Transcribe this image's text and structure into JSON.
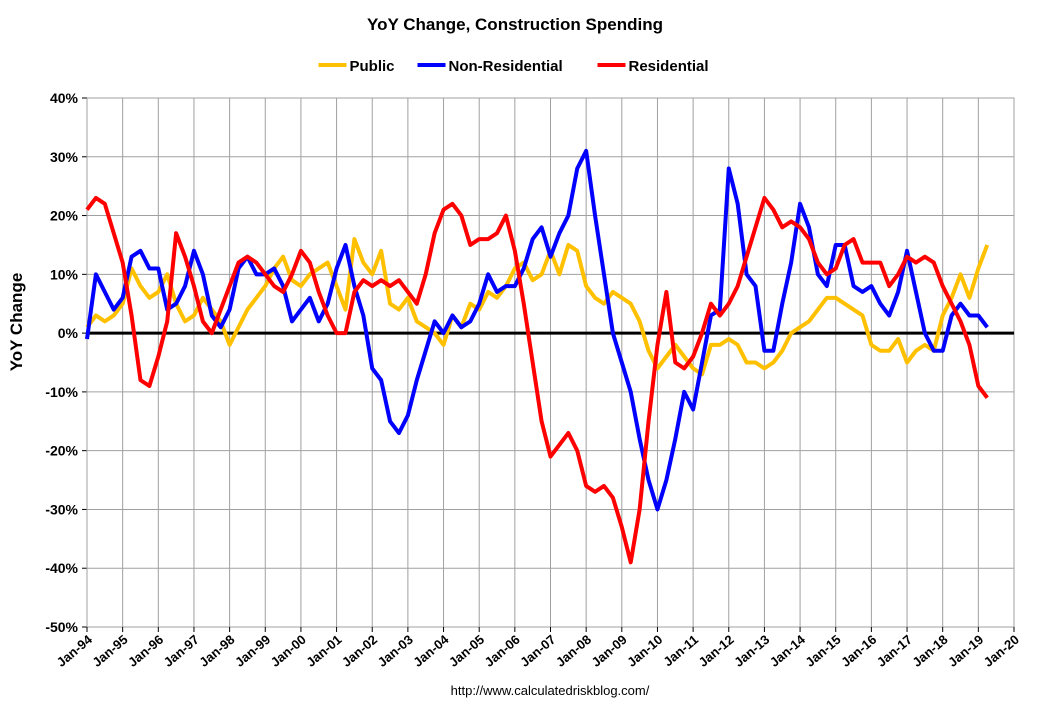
{
  "chart_data": {
    "type": "line",
    "title": "YoY Change,  Construction Spending",
    "ylabel": "YoY Change",
    "source": "http://www.calculatedriskblog.com/",
    "grid": true,
    "legend": "top",
    "xlim": [
      1994,
      2020
    ],
    "xticks": [
      {
        "value": 1994,
        "label": "Jan-94"
      },
      {
        "value": 1995,
        "label": "Jan-95"
      },
      {
        "value": 1996,
        "label": "Jan-96"
      },
      {
        "value": 1997,
        "label": "Jan-97"
      },
      {
        "value": 1998,
        "label": "Jan-98"
      },
      {
        "value": 1999,
        "label": "Jan-99"
      },
      {
        "value": 2000,
        "label": "Jan-00"
      },
      {
        "value": 2001,
        "label": "Jan-01"
      },
      {
        "value": 2002,
        "label": "Jan-02"
      },
      {
        "value": 2003,
        "label": "Jan-03"
      },
      {
        "value": 2004,
        "label": "Jan-04"
      },
      {
        "value": 2005,
        "label": "Jan-05"
      },
      {
        "value": 2006,
        "label": "Jan-06"
      },
      {
        "value": 2007,
        "label": "Jan-07"
      },
      {
        "value": 2008,
        "label": "Jan-08"
      },
      {
        "value": 2009,
        "label": "Jan-09"
      },
      {
        "value": 2010,
        "label": "Jan-10"
      },
      {
        "value": 2011,
        "label": "Jan-11"
      },
      {
        "value": 2012,
        "label": "Jan-12"
      },
      {
        "value": 2013,
        "label": "Jan-13"
      },
      {
        "value": 2014,
        "label": "Jan-14"
      },
      {
        "value": 2015,
        "label": "Jan-15"
      },
      {
        "value": 2016,
        "label": "Jan-16"
      },
      {
        "value": 2017,
        "label": "Jan-17"
      },
      {
        "value": 2018,
        "label": "Jan-18"
      },
      {
        "value": 2019,
        "label": "Jan-19"
      },
      {
        "value": 2020,
        "label": "Jan-20"
      }
    ],
    "ylim": [
      -50,
      40
    ],
    "yticks": [
      {
        "value": -50,
        "label": "-50%"
      },
      {
        "value": -40,
        "label": "-40%"
      },
      {
        "value": -30,
        "label": "-30%"
      },
      {
        "value": -20,
        "label": "-20%"
      },
      {
        "value": -10,
        "label": "-10%"
      },
      {
        "value": 0,
        "label": "0%"
      },
      {
        "value": 10,
        "label": "10%"
      },
      {
        "value": 20,
        "label": "20%"
      },
      {
        "value": 30,
        "label": "30%"
      },
      {
        "value": 40,
        "label": "40%"
      }
    ],
    "x": [
      1994,
      1994.25,
      1994.5,
      1994.75,
      1995,
      1995.25,
      1995.5,
      1995.75,
      1996,
      1996.25,
      1996.5,
      1996.75,
      1997,
      1997.25,
      1997.5,
      1997.75,
      1998,
      1998.25,
      1998.5,
      1998.75,
      1999,
      1999.25,
      1999.5,
      1999.75,
      2000,
      2000.25,
      2000.5,
      2000.75,
      2001,
      2001.25,
      2001.5,
      2001.75,
      2002,
      2002.25,
      2002.5,
      2002.75,
      2003,
      2003.25,
      2003.5,
      2003.75,
      2004,
      2004.25,
      2004.5,
      2004.75,
      2005,
      2005.25,
      2005.5,
      2005.75,
      2006,
      2006.25,
      2006.5,
      2006.75,
      2007,
      2007.25,
      2007.5,
      2007.75,
      2008,
      2008.25,
      2008.5,
      2008.75,
      2009,
      2009.25,
      2009.5,
      2009.75,
      2010,
      2010.25,
      2010.5,
      2010.75,
      2011,
      2011.25,
      2011.5,
      2011.75,
      2012,
      2012.25,
      2012.5,
      2012.75,
      2013,
      2013.25,
      2013.5,
      2013.75,
      2014,
      2014.25,
      2014.5,
      2014.75,
      2015,
      2015.25,
      2015.5,
      2015.75,
      2016,
      2016.25,
      2016.5,
      2016.75,
      2017,
      2017.25,
      2017.5,
      2017.75,
      2018,
      2018.25,
      2018.5,
      2018.75,
      2019,
      2019.25
    ],
    "series": [
      {
        "name": "Public",
        "color": "#ffc000",
        "values": [
          1,
          3,
          2,
          3,
          5,
          11,
          8,
          6,
          7,
          10,
          5,
          2,
          3,
          6,
          4,
          2,
          -2,
          1,
          4,
          6,
          8,
          11,
          13,
          9,
          8,
          10,
          11,
          12,
          8,
          4,
          16,
          12,
          10,
          14,
          5,
          4,
          6,
          2,
          1,
          0,
          -2,
          3,
          1,
          5,
          4,
          7,
          6,
          8,
          11,
          12,
          9,
          10,
          14,
          10,
          15,
          14,
          8,
          6,
          5,
          7,
          6,
          5,
          2,
          -3,
          -6,
          -4,
          -2,
          -4,
          -6,
          -7,
          -2,
          -2,
          -1,
          -2,
          -5,
          -5,
          -6,
          -5,
          -3,
          0,
          1,
          2,
          4,
          6,
          6,
          5,
          4,
          3,
          -2,
          -3,
          -3,
          -1,
          -5,
          -3,
          -2,
          -3,
          3,
          6,
          10,
          6,
          11,
          15
        ]
      },
      {
        "name": "Non-Residential",
        "color": "#0000ff",
        "values": [
          -1,
          10,
          7,
          4,
          6,
          13,
          14,
          11,
          11,
          4,
          5,
          8,
          14,
          10,
          3,
          1,
          4,
          11,
          13,
          10,
          10,
          11,
          8,
          2,
          4,
          6,
          2,
          5,
          11,
          15,
          8,
          3,
          -6,
          -8,
          -15,
          -17,
          -14,
          -8,
          -3,
          2,
          0,
          3,
          1,
          2,
          5,
          10,
          7,
          8,
          8,
          11,
          16,
          18,
          13,
          17,
          20,
          28,
          31,
          20,
          10,
          0,
          -5,
          -10,
          -18,
          -25,
          -30,
          -25,
          -18,
          -10,
          -13,
          -5,
          3,
          4,
          28,
          22,
          10,
          8,
          -3,
          -3,
          5,
          12,
          22,
          18,
          10,
          8,
          15,
          15,
          8,
          7,
          8,
          5,
          3,
          7,
          14,
          7,
          0,
          -3,
          -3,
          3,
          5,
          3,
          3,
          1
        ]
      },
      {
        "name": "Residential",
        "color": "#ff0000",
        "values": [
          21,
          23,
          22,
          17,
          12,
          3,
          -8,
          -9,
          -4,
          2,
          17,
          13,
          8,
          2,
          0,
          4,
          8,
          12,
          13,
          12,
          10,
          8,
          7,
          10,
          14,
          12,
          7,
          3,
          0,
          0,
          7,
          9,
          8,
          9,
          8,
          9,
          7,
          5,
          10,
          17,
          21,
          22,
          20,
          15,
          16,
          16,
          17,
          20,
          14,
          5,
          -5,
          -15,
          -21,
          -19,
          -17,
          -20,
          -26,
          -27,
          -26,
          -28,
          -33,
          -39,
          -30,
          -15,
          -2,
          7,
          -5,
          -6,
          -4,
          0,
          5,
          3,
          5,
          8,
          13,
          18,
          23,
          21,
          18,
          19,
          18,
          16,
          12,
          10,
          11,
          15,
          16,
          12,
          12,
          12,
          8,
          10,
          13,
          12,
          13,
          12,
          8,
          5,
          2,
          -2,
          -9,
          -11
        ]
      }
    ]
  }
}
